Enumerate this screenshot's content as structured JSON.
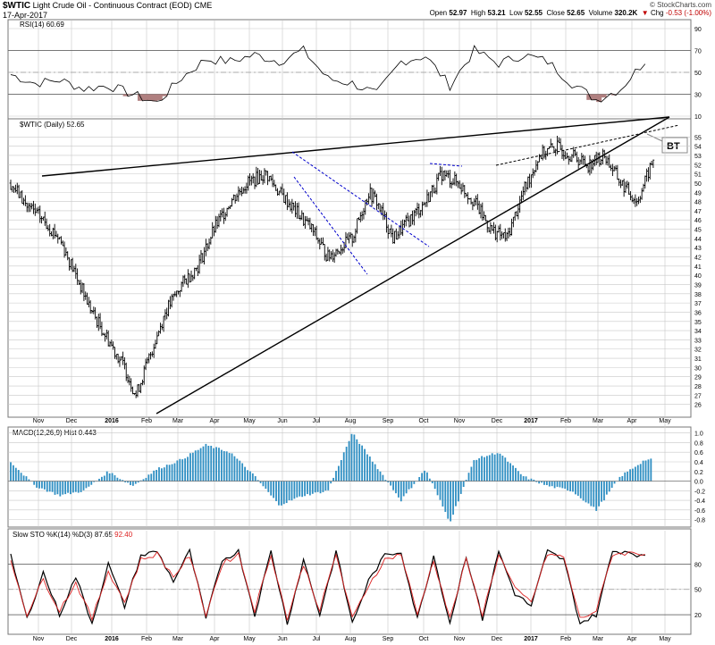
{
  "header": {
    "symbol": "$WTIC",
    "description": "Light Crude Oil - Continuous Contract (EOD)",
    "exchange": "CME",
    "date": "17-Apr-2017",
    "credit": "© StockCharts.com",
    "open_label": "Open",
    "open": "52.97",
    "high_label": "High",
    "high": "53.21",
    "low_label": "Low",
    "low": "52.55",
    "close_label": "Close",
    "close": "52.65",
    "volume_label": "Volume",
    "volume": "320.2K",
    "chg_label": "Chg",
    "chg": "-0.53 (-1.00%)",
    "chg_arrow": "▼"
  },
  "colors": {
    "price_bars": "#000000",
    "macd_hist": "#2f8fc3",
    "sto_k": "#000000",
    "sto_d": "#dd2222",
    "rsi_fill": "#b08080",
    "channel_lines": "#0000cc",
    "grid": "#c8c8c8"
  },
  "chart_data": [
    {
      "type": "line",
      "panel": "rsi",
      "legend": "RSI(14) 60.69",
      "ylim": [
        10,
        90
      ],
      "ticks": [
        "90",
        "70",
        "50",
        "30",
        "10"
      ],
      "reference_lines": [
        70,
        50,
        30
      ],
      "x_weeks": [
        0,
        3,
        6,
        9,
        12,
        15,
        18,
        21,
        24,
        27,
        30,
        33,
        36,
        39,
        42,
        45,
        48,
        51,
        54,
        57,
        60,
        63,
        66,
        69,
        72,
        75,
        78
      ],
      "values": [
        48,
        40,
        43,
        35,
        38,
        30,
        22,
        45,
        62,
        60,
        66,
        60,
        70,
        44,
        40,
        30,
        60,
        65,
        38,
        70,
        58,
        66,
        60,
        40,
        25,
        35,
        60.69
      ]
    },
    {
      "type": "ohlc",
      "panel": "price",
      "legend": "$WTIC (Daily) 52.65",
      "ylim": [
        25,
        56
      ],
      "ticks": [
        "55",
        "54",
        "53",
        "52",
        "51",
        "50",
        "49",
        "48",
        "47",
        "46",
        "45",
        "44",
        "43",
        "42",
        "41",
        "40",
        "39",
        "38",
        "37",
        "36",
        "35",
        "34",
        "33",
        "32",
        "31",
        "30",
        "29",
        "28",
        "27",
        "26"
      ],
      "x_weeks": [
        0,
        2,
        4,
        6,
        8,
        10,
        12,
        14,
        15.4,
        17,
        19,
        21,
        23,
        25,
        27,
        29,
        31.4,
        33,
        35,
        37,
        39,
        42,
        44,
        45,
        47,
        49,
        51,
        53,
        55,
        57,
        59,
        61,
        63,
        65,
        67,
        69,
        71,
        73,
        75,
        77,
        79.1
      ],
      "close": [
        50,
        47.5,
        46,
        44,
        40,
        36,
        33,
        30,
        27,
        31,
        36,
        39,
        41,
        45,
        48,
        50,
        51,
        49,
        47,
        45,
        42,
        44,
        49,
        48,
        44,
        46,
        48,
        51,
        50,
        48,
        45,
        44,
        49,
        53,
        54,
        53,
        52,
        53,
        50,
        48,
        52.65
      ],
      "annotations": [
        "BT"
      ],
      "trendlines": [
        "rising wedge upper",
        "rising wedge lower",
        "dotted support",
        "blue descending channel"
      ]
    },
    {
      "type": "bar",
      "panel": "macd",
      "legend": "MACD(12,26,9) Hist 0.443",
      "ylim": [
        -0.9,
        1.05
      ],
      "ticks": [
        "1.0",
        "0.8",
        "0.6",
        "0.4",
        "0.2",
        "0.0",
        "-0.2",
        "-0.4",
        "-0.6",
        "-0.8"
      ],
      "x_weeks": [
        0,
        3,
        6,
        9,
        12,
        15,
        18,
        21,
        24,
        27,
        30,
        33,
        36,
        39,
        42,
        45,
        48,
        51,
        54,
        57,
        60,
        63,
        66,
        69,
        72,
        75,
        78
      ],
      "values": [
        0.4,
        -0.1,
        -0.3,
        -0.2,
        0.2,
        -0.1,
        0.25,
        0.45,
        0.75,
        0.6,
        0.1,
        -0.5,
        -0.3,
        -0.2,
        1.0,
        0.3,
        -0.4,
        0.25,
        -0.85,
        0.45,
        0.6,
        0.1,
        -0.1,
        -0.2,
        -0.6,
        0.1,
        0.443
      ]
    },
    {
      "type": "line",
      "panel": "sto",
      "legend": "Slow STO %K(14) %D(3)",
      "legend_k": "87.65",
      "legend_d": "92.40",
      "ylim": [
        0,
        110
      ],
      "ticks": [
        "80",
        "50",
        "20"
      ],
      "reference_lines": [
        80,
        50,
        20
      ],
      "series": [
        {
          "name": "%K",
          "x_weeks": [
            0,
            2,
            4,
            6,
            8,
            10,
            12,
            14,
            16,
            18,
            20,
            22,
            24,
            26,
            28,
            30,
            32,
            34,
            36,
            38,
            40,
            42,
            44,
            46,
            48,
            50,
            52,
            54,
            56,
            58,
            60,
            62,
            64,
            66,
            68,
            70,
            72,
            74,
            76,
            78
          ],
          "values": [
            90,
            15,
            70,
            20,
            65,
            10,
            80,
            30,
            90,
            95,
            60,
            95,
            15,
            85,
            95,
            20,
            95,
            10,
            85,
            20,
            95,
            10,
            60,
            90,
            95,
            15,
            90,
            10,
            90,
            15,
            95,
            45,
            30,
            95,
            85,
            10,
            20,
            95,
            95,
            87.65
          ]
        },
        {
          "name": "%D",
          "x_weeks": [
            0,
            2,
            4,
            6,
            8,
            10,
            12,
            14,
            16,
            18,
            20,
            22,
            24,
            26,
            28,
            30,
            32,
            34,
            36,
            38,
            40,
            42,
            44,
            46,
            48,
            50,
            52,
            54,
            56,
            58,
            60,
            62,
            64,
            66,
            68,
            70,
            72,
            74,
            76,
            78
          ],
          "values": [
            85,
            20,
            62,
            25,
            58,
            15,
            72,
            35,
            85,
            92,
            65,
            90,
            20,
            80,
            92,
            25,
            92,
            15,
            80,
            25,
            92,
            15,
            55,
            85,
            92,
            20,
            85,
            15,
            85,
            20,
            92,
            50,
            35,
            92,
            88,
            15,
            25,
            92,
            93,
            92.4
          ]
        }
      ]
    }
  ],
  "x_axis": {
    "labels": [
      "Nov",
      "Dec",
      "2016",
      "Feb",
      "Mar",
      "Apr",
      "May",
      "Jun",
      "Jul",
      "Aug",
      "Sep",
      "Oct",
      "Nov",
      "Dec",
      "2017",
      "Feb",
      "Mar",
      "Apr",
      "May"
    ],
    "bold_labels": [
      "2016",
      "2017"
    ]
  }
}
